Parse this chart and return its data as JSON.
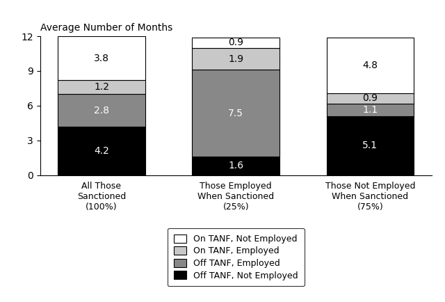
{
  "categories": [
    "All Those\nSanctioned\n(100%)",
    "Those Employed\nWhen Sanctioned\n(25%)",
    "Those Not Employed\nWhen Sanctioned\n(75%)"
  ],
  "segments": {
    "Off TANF, Not Employed": [
      4.2,
      1.6,
      5.1
    ],
    "Off TANF, Employed": [
      2.8,
      7.5,
      1.1
    ],
    "On TANF, Employed": [
      1.2,
      1.9,
      0.9
    ],
    "On TANF, Not Employed": [
      3.8,
      0.9,
      4.8
    ]
  },
  "colors": {
    "Off TANF, Not Employed": "#000000",
    "Off TANF, Employed": "#888888",
    "On TANF, Employed": "#c8c8c8",
    "On TANF, Not Employed": "#ffffff"
  },
  "label_colors": {
    "Off TANF, Not Employed": "white",
    "Off TANF, Employed": "white",
    "On TANF, Employed": "black",
    "On TANF, Not Employed": "black"
  },
  "legend_order": [
    "On TANF, Not Employed",
    "On TANF, Employed",
    "Off TANF, Employed",
    "Off TANF, Not Employed"
  ],
  "ylabel": "Average Number of Months",
  "ylim": [
    0,
    12
  ],
  "yticks": [
    0,
    3,
    6,
    9,
    12
  ],
  "bar_width": 0.65,
  "edgecolor": "#000000",
  "background_color": "#ffffff",
  "legend_fontsize": 9,
  "label_fontsize": 10
}
